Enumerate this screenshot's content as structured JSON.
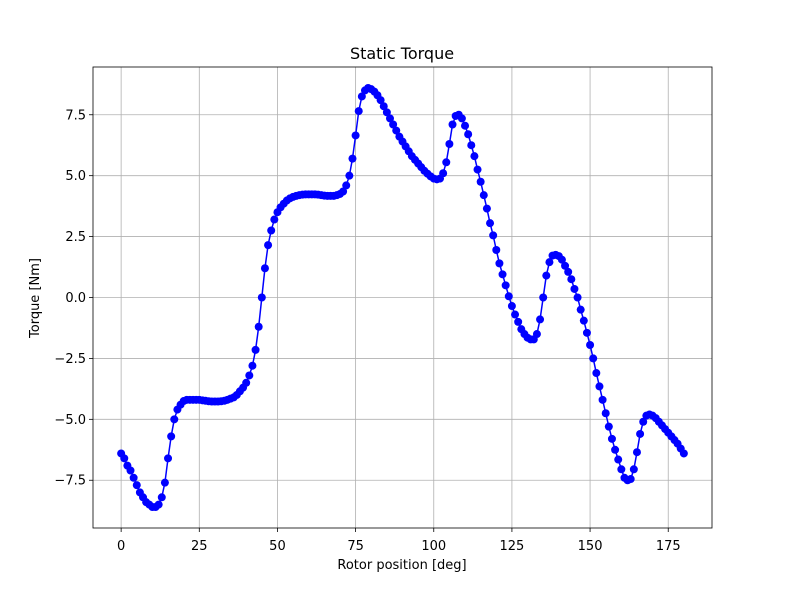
{
  "chart_data": {
    "type": "line",
    "title": "Static Torque",
    "x_label": "Rotor position [deg]",
    "y_label": "Torque [Nm]",
    "color": "#0000ff",
    "grid": true,
    "xlim": [
      -9,
      189
    ],
    "ylim": [
      -9.46,
      9.46
    ],
    "xticks": [
      0,
      25,
      50,
      75,
      100,
      125,
      150,
      175
    ],
    "yticks": [
      {
        "value": -7.5,
        "label": "−7.5"
      },
      {
        "value": -5,
        "label": "−5.0"
      },
      {
        "value": -2.5,
        "label": "−2.5"
      },
      {
        "value": 0,
        "label": "0.0"
      },
      2.5,
      {
        "value": 5,
        "label": "5.0"
      },
      7.5
    ],
    "x": [
      0,
      1,
      2,
      3,
      4,
      5,
      6,
      7,
      8,
      9,
      10,
      11,
      12,
      13,
      14,
      15,
      16,
      17,
      18,
      19,
      20,
      21,
      22,
      23,
      24,
      25,
      26,
      27,
      28,
      29,
      30,
      31,
      32,
      33,
      34,
      35,
      36,
      37,
      38,
      39,
      40,
      41,
      42,
      43,
      44,
      45,
      46,
      47,
      48,
      49,
      50,
      51,
      52,
      53,
      54,
      55,
      56,
      57,
      58,
      59,
      60,
      61,
      62,
      63,
      64,
      65,
      66,
      67,
      68,
      69,
      70,
      71,
      72,
      73,
      74,
      75,
      76,
      77,
      78,
      79,
      80,
      81,
      82,
      83,
      84,
      85,
      86,
      87,
      88,
      89,
      90,
      91,
      92,
      93,
      94,
      95,
      96,
      97,
      98,
      99,
      100,
      101,
      102,
      103,
      104,
      105,
      106,
      107,
      108,
      109,
      110,
      111,
      112,
      113,
      114,
      115,
      116,
      117,
      118,
      119,
      120,
      121,
      122,
      123,
      124,
      125,
      126,
      127,
      128,
      129,
      130,
      131,
      132,
      133,
      134,
      135,
      136,
      137,
      138,
      139,
      140,
      141,
      142,
      143,
      144,
      145,
      146,
      147,
      148,
      149,
      150,
      151,
      152,
      153,
      154,
      155,
      156,
      157,
      158,
      159,
      160,
      161,
      162,
      163,
      164,
      165,
      166,
      167,
      168,
      169,
      170,
      171,
      172,
      173,
      174,
      175,
      176,
      177,
      178,
      179,
      180
    ],
    "values": [
      -6.4,
      -6.6,
      -6.9,
      -7.1,
      -7.4,
      -7.7,
      -8.0,
      -8.2,
      -8.4,
      -8.5,
      -8.6,
      -8.6,
      -8.5,
      -8.2,
      -7.6,
      -6.6,
      -5.7,
      -5.0,
      -4.6,
      -4.4,
      -4.25,
      -4.2,
      -4.2,
      -4.2,
      -4.2,
      -4.2,
      -4.22,
      -4.24,
      -4.26,
      -4.27,
      -4.27,
      -4.27,
      -4.26,
      -4.24,
      -4.2,
      -4.15,
      -4.1,
      -4.0,
      -3.85,
      -3.7,
      -3.5,
      -3.2,
      -2.8,
      -2.15,
      -1.2,
      0.0,
      1.2,
      2.15,
      2.75,
      3.2,
      3.5,
      3.7,
      3.85,
      3.98,
      4.07,
      4.13,
      4.17,
      4.2,
      4.22,
      4.23,
      4.23,
      4.23,
      4.23,
      4.22,
      4.2,
      4.18,
      4.17,
      4.17,
      4.17,
      4.2,
      4.25,
      4.35,
      4.6,
      5.0,
      5.7,
      6.65,
      7.65,
      8.25,
      8.5,
      8.6,
      8.55,
      8.45,
      8.3,
      8.1,
      7.85,
      7.6,
      7.35,
      7.1,
      6.85,
      6.6,
      6.4,
      6.2,
      6.0,
      5.8,
      5.65,
      5.5,
      5.35,
      5.2,
      5.08,
      4.97,
      4.88,
      4.85,
      4.88,
      5.1,
      5.55,
      6.3,
      7.1,
      7.45,
      7.5,
      7.35,
      7.05,
      6.7,
      6.25,
      5.8,
      5.25,
      4.75,
      4.2,
      3.65,
      3.05,
      2.55,
      1.95,
      1.4,
      0.95,
      0.5,
      0.05,
      -0.35,
      -0.7,
      -1.0,
      -1.3,
      -1.5,
      -1.65,
      -1.72,
      -1.72,
      -1.5,
      -0.9,
      0.0,
      0.9,
      1.45,
      1.72,
      1.75,
      1.7,
      1.55,
      1.3,
      1.05,
      0.75,
      0.35,
      0.0,
      -0.5,
      -0.95,
      -1.45,
      -1.95,
      -2.5,
      -3.1,
      -3.65,
      -4.2,
      -4.75,
      -5.3,
      -5.8,
      -6.25,
      -6.65,
      -7.05,
      -7.4,
      -7.5,
      -7.45,
      -7.05,
      -6.35,
      -5.6,
      -5.1,
      -4.85,
      -4.8,
      -4.85,
      -4.95,
      -5.1,
      -5.25,
      -5.4,
      -5.55,
      -5.7,
      -5.85,
      -6.0,
      -6.2,
      -6.4
    ]
  }
}
